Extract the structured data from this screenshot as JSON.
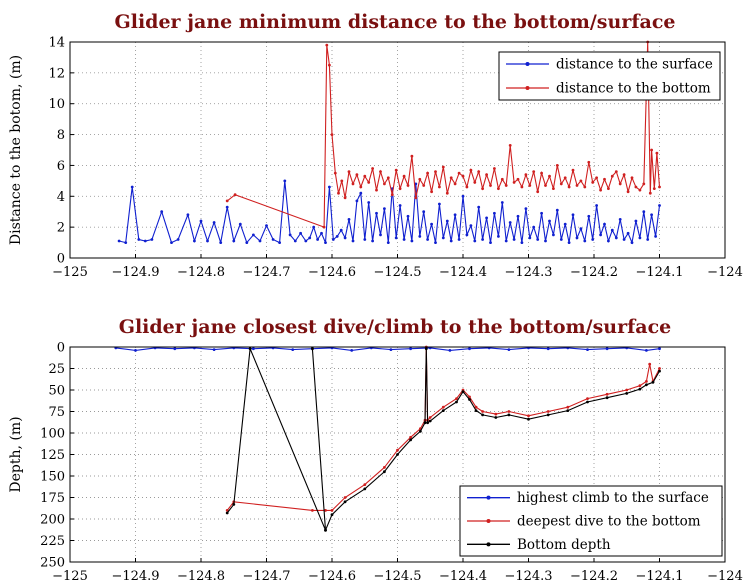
{
  "chart_data": [
    {
      "type": "line",
      "title": "Glider jane minimum distance to the bottom/surface",
      "xlabel": "",
      "ylabel": "Distance to the botom, (m)",
      "xlim": [
        -125,
        -124
      ],
      "ylim": [
        0,
        14
      ],
      "xticks": [
        -125,
        -124.9,
        -124.8,
        -124.7,
        -124.6,
        -124.5,
        -124.4,
        -124.3,
        -124.2,
        -124.1,
        -124
      ],
      "xtick_labels": [
        "−125",
        "−124.9",
        "−124.8",
        "−124.7",
        "−124.6",
        "−124.5",
        "−124.4",
        "−124.3",
        "−124.2",
        "−124.1",
        "−124"
      ],
      "yticks": [
        0,
        2,
        4,
        6,
        8,
        10,
        12,
        14
      ],
      "ytick_labels": [
        "0",
        "2",
        "4",
        "6",
        "8",
        "10",
        "12",
        "14"
      ],
      "grid": true,
      "legend_position": "top-right",
      "series": [
        {
          "name": "distance to the surface",
          "color": "#1020d0",
          "x": [
            -124.925,
            -124.915,
            -124.905,
            -124.895,
            -124.885,
            -124.875,
            -124.86,
            -124.845,
            -124.835,
            -124.82,
            -124.81,
            -124.8,
            -124.79,
            -124.78,
            -124.77,
            -124.76,
            -124.75,
            -124.74,
            -124.73,
            -124.72,
            -124.71,
            -124.7,
            -124.69,
            -124.68,
            -124.672,
            -124.664,
            -124.656,
            -124.648,
            -124.64,
            -124.634,
            -124.628,
            -124.622,
            -124.616,
            -124.61,
            -124.604,
            -124.598,
            -124.592,
            -124.586,
            -124.58,
            -124.574,
            -124.568,
            -124.562,
            -124.556,
            -124.55,
            -124.544,
            -124.538,
            -124.532,
            -124.526,
            -124.52,
            -124.514,
            -124.508,
            -124.502,
            -124.496,
            -124.49,
            -124.484,
            -124.478,
            -124.472,
            -124.466,
            -124.46,
            -124.454,
            -124.448,
            -124.442,
            -124.436,
            -124.43,
            -124.424,
            -124.418,
            -124.412,
            -124.406,
            -124.4,
            -124.394,
            -124.388,
            -124.382,
            -124.376,
            -124.37,
            -124.364,
            -124.358,
            -124.352,
            -124.346,
            -124.34,
            -124.334,
            -124.328,
            -124.322,
            -124.316,
            -124.31,
            -124.304,
            -124.298,
            -124.292,
            -124.286,
            -124.28,
            -124.274,
            -124.268,
            -124.262,
            -124.256,
            -124.25,
            -124.244,
            -124.238,
            -124.232,
            -124.226,
            -124.22,
            -124.214,
            -124.208,
            -124.202,
            -124.196,
            -124.19,
            -124.184,
            -124.178,
            -124.172,
            -124.166,
            -124.16,
            -124.154,
            -124.148,
            -124.142,
            -124.136,
            -124.13,
            -124.124,
            -124.118,
            -124.112,
            -124.106,
            -124.1
          ],
          "y": [
            1.1,
            1.0,
            4.6,
            1.2,
            1.1,
            1.2,
            3.0,
            1.0,
            1.2,
            2.8,
            1.1,
            2.4,
            1.1,
            2.3,
            1.0,
            3.3,
            1.1,
            2.2,
            1.0,
            1.5,
            1.1,
            2.1,
            1.2,
            1.0,
            5.0,
            1.5,
            1.1,
            1.6,
            1.1,
            1.3,
            2.0,
            1.2,
            1.6,
            1.0,
            4.6,
            1.2,
            1.4,
            1.8,
            1.3,
            2.5,
            1.1,
            3.7,
            4.2,
            1.2,
            3.6,
            1.1,
            2.9,
            1.5,
            3.2,
            1.0,
            4.5,
            1.3,
            3.4,
            1.2,
            2.7,
            1.1,
            4.8,
            1.4,
            3.0,
            1.2,
            2.2,
            1.0,
            3.5,
            1.3,
            2.4,
            1.1,
            2.8,
            1.2,
            4.0,
            1.5,
            2.1,
            1.1,
            3.3,
            1.2,
            2.6,
            1.0,
            2.9,
            1.4,
            3.6,
            1.1,
            2.3,
            1.2,
            2.7,
            1.0,
            3.2,
            1.3,
            2.0,
            1.2,
            2.9,
            1.1,
            2.4,
            1.5,
            3.1,
            1.2,
            2.2,
            1.0,
            2.8,
            1.3,
            1.9,
            1.1,
            2.7,
            1.2,
            3.4,
            1.5,
            2.2,
            1.1,
            1.8,
            1.3,
            2.5,
            1.2,
            1.6,
            1.0,
            2.4,
            1.3,
            3.0,
            1.2,
            2.8,
            1.4,
            3.4
          ]
        },
        {
          "name": "distance to the bottom",
          "color": "#d02020",
          "x": [
            -124.76,
            -124.748,
            -124.612,
            -124.608,
            -124.604,
            -124.6,
            -124.595,
            -124.59,
            -124.585,
            -124.58,
            -124.574,
            -124.568,
            -124.562,
            -124.556,
            -124.55,
            -124.544,
            -124.538,
            -124.532,
            -124.526,
            -124.52,
            -124.514,
            -124.508,
            -124.502,
            -124.496,
            -124.49,
            -124.484,
            -124.478,
            -124.472,
            -124.466,
            -124.46,
            -124.454,
            -124.448,
            -124.442,
            -124.436,
            -124.43,
            -124.424,
            -124.418,
            -124.412,
            -124.406,
            -124.4,
            -124.394,
            -124.388,
            -124.382,
            -124.376,
            -124.37,
            -124.364,
            -124.358,
            -124.352,
            -124.346,
            -124.34,
            -124.334,
            -124.328,
            -124.322,
            -124.316,
            -124.31,
            -124.304,
            -124.298,
            -124.292,
            -124.286,
            -124.28,
            -124.274,
            -124.268,
            -124.262,
            -124.256,
            -124.25,
            -124.244,
            -124.238,
            -124.232,
            -124.226,
            -124.22,
            -124.214,
            -124.208,
            -124.202,
            -124.196,
            -124.19,
            -124.184,
            -124.178,
            -124.172,
            -124.166,
            -124.16,
            -124.154,
            -124.148,
            -124.142,
            -124.136,
            -124.13,
            -124.124,
            -124.118,
            -124.114,
            -124.112,
            -124.108,
            -124.104,
            -124.1
          ],
          "y": [
            3.7,
            4.1,
            2.0,
            13.8,
            12.5,
            8.0,
            5.5,
            4.2,
            5.0,
            3.9,
            5.6,
            4.8,
            5.4,
            4.6,
            5.3,
            4.9,
            5.8,
            4.4,
            5.6,
            4.8,
            5.2,
            4.1,
            5.7,
            4.5,
            5.3,
            4.7,
            6.6,
            3.9,
            5.1,
            4.7,
            5.5,
            4.3,
            5.6,
            4.6,
            5.9,
            4.2,
            5.2,
            4.8,
            5.5,
            5.3,
            4.6,
            5.7,
            4.9,
            5.6,
            4.5,
            5.4,
            4.7,
            5.8,
            4.5,
            5.1,
            4.7,
            7.3,
            4.9,
            5.1,
            4.6,
            5.4,
            4.7,
            5.6,
            4.3,
            5.5,
            4.7,
            5.3,
            4.5,
            6.0,
            4.8,
            5.2,
            4.6,
            5.7,
            4.7,
            5.0,
            4.6,
            6.2,
            4.9,
            5.2,
            4.4,
            5.1,
            4.5,
            5.3,
            5.6,
            4.8,
            5.4,
            4.3,
            5.2,
            4.6,
            4.4,
            4.8,
            14.0,
            4.2,
            7.0,
            4.5,
            6.8,
            4.6
          ]
        }
      ]
    },
    {
      "type": "line",
      "title": "Glider jane closest dive/climb to the bottom/surface",
      "xlabel": "",
      "ylabel": "Depth, (m)",
      "xlim": [
        -125,
        -124
      ],
      "ylim": [
        250,
        0
      ],
      "y_inverted": true,
      "xticks": [
        -125,
        -124.9,
        -124.8,
        -124.7,
        -124.6,
        -124.5,
        -124.4,
        -124.3,
        -124.2,
        -124.1,
        -124
      ],
      "xtick_labels": [
        "−125",
        "−124.9",
        "−124.8",
        "−124.7",
        "−124.6",
        "−124.5",
        "−124.4",
        "−124.3",
        "−124.2",
        "−124.1",
        "−124"
      ],
      "yticks": [
        0,
        25,
        50,
        75,
        100,
        125,
        150,
        175,
        200,
        225,
        250
      ],
      "ytick_labels": [
        "0",
        "25",
        "50",
        "75",
        "100",
        "125",
        "150",
        "175",
        "200",
        "225",
        "250"
      ],
      "grid": true,
      "legend_position": "bottom-right",
      "series": [
        {
          "name": "highest climb to the surface",
          "color": "#1020d0",
          "x": [
            -124.93,
            -124.9,
            -124.87,
            -124.84,
            -124.81,
            -124.78,
            -124.75,
            -124.72,
            -124.69,
            -124.66,
            -124.63,
            -124.6,
            -124.57,
            -124.54,
            -124.51,
            -124.48,
            -124.45,
            -124.42,
            -124.39,
            -124.36,
            -124.33,
            -124.3,
            -124.27,
            -124.24,
            -124.21,
            -124.18,
            -124.15,
            -124.12,
            -124.1
          ],
          "y": [
            1,
            4,
            1,
            2,
            1,
            3,
            1,
            2,
            1,
            3,
            2,
            1,
            4,
            1,
            3,
            2,
            1,
            4,
            2,
            1,
            3,
            1,
            2,
            1,
            3,
            2,
            1,
            4,
            2
          ]
        },
        {
          "name": "deepest dive to the bottom",
          "color": "#d02020",
          "x": [
            -124.76,
            -124.75,
            -124.63,
            -124.61,
            -124.6,
            -124.58,
            -124.55,
            -124.52,
            -124.5,
            -124.48,
            -124.465,
            -124.458,
            -124.456,
            -124.454,
            -124.45,
            -124.43,
            -124.41,
            -124.4,
            -124.39,
            -124.38,
            -124.37,
            -124.35,
            -124.33,
            -124.3,
            -124.27,
            -124.24,
            -124.21,
            -124.18,
            -124.15,
            -124.13,
            -124.12,
            -124.115,
            -124.11,
            -124.1
          ],
          "y": [
            190,
            180,
            190,
            190,
            190,
            175,
            160,
            140,
            120,
            105,
            95,
            85,
            0,
            85,
            82,
            70,
            60,
            50,
            58,
            70,
            75,
            78,
            75,
            80,
            75,
            70,
            60,
            55,
            50,
            45,
            40,
            20,
            40,
            25
          ]
        },
        {
          "name": "Bottom depth",
          "color": "#000000",
          "x": [
            -124.76,
            -124.75,
            -124.725,
            -124.61,
            -124.63,
            -124.61,
            -124.6,
            -124.58,
            -124.55,
            -124.52,
            -124.5,
            -124.48,
            -124.465,
            -124.458,
            -124.456,
            -124.454,
            -124.45,
            -124.43,
            -124.41,
            -124.4,
            -124.39,
            -124.38,
            -124.37,
            -124.35,
            -124.33,
            -124.3,
            -124.27,
            -124.24,
            -124.21,
            -124.18,
            -124.15,
            -124.13,
            -124.12,
            -124.11,
            -124.1
          ],
          "y": [
            193,
            183,
            2,
            213,
            2,
            213,
            195,
            180,
            165,
            145,
            125,
            108,
            98,
            88,
            2,
            88,
            86,
            74,
            64,
            52,
            61,
            74,
            79,
            82,
            79,
            84,
            79,
            74,
            64,
            59,
            54,
            49,
            44,
            41,
            28
          ]
        }
      ]
    }
  ]
}
